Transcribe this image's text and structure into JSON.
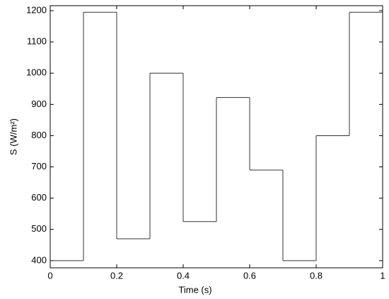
{
  "chart_data": {
    "type": "line",
    "step": "post",
    "x": [
      0,
      0.1,
      0.2,
      0.3,
      0.4,
      0.5,
      0.6,
      0.7,
      0.8,
      0.9
    ],
    "values": [
      400,
      1195,
      470,
      1000,
      525,
      922,
      690,
      400,
      800,
      1195
    ],
    "color": "#333333",
    "xlabel": "Time (s)",
    "ylabel": "S (W/m²)",
    "xlim": [
      0,
      1
    ],
    "xticks": [
      0,
      0.2,
      0.4,
      0.6,
      0.8,
      1
    ],
    "ylim": [
      377,
      1216
    ],
    "yticks": [
      400,
      500,
      600,
      700,
      800,
      900,
      1000,
      1100,
      1200
    ]
  }
}
